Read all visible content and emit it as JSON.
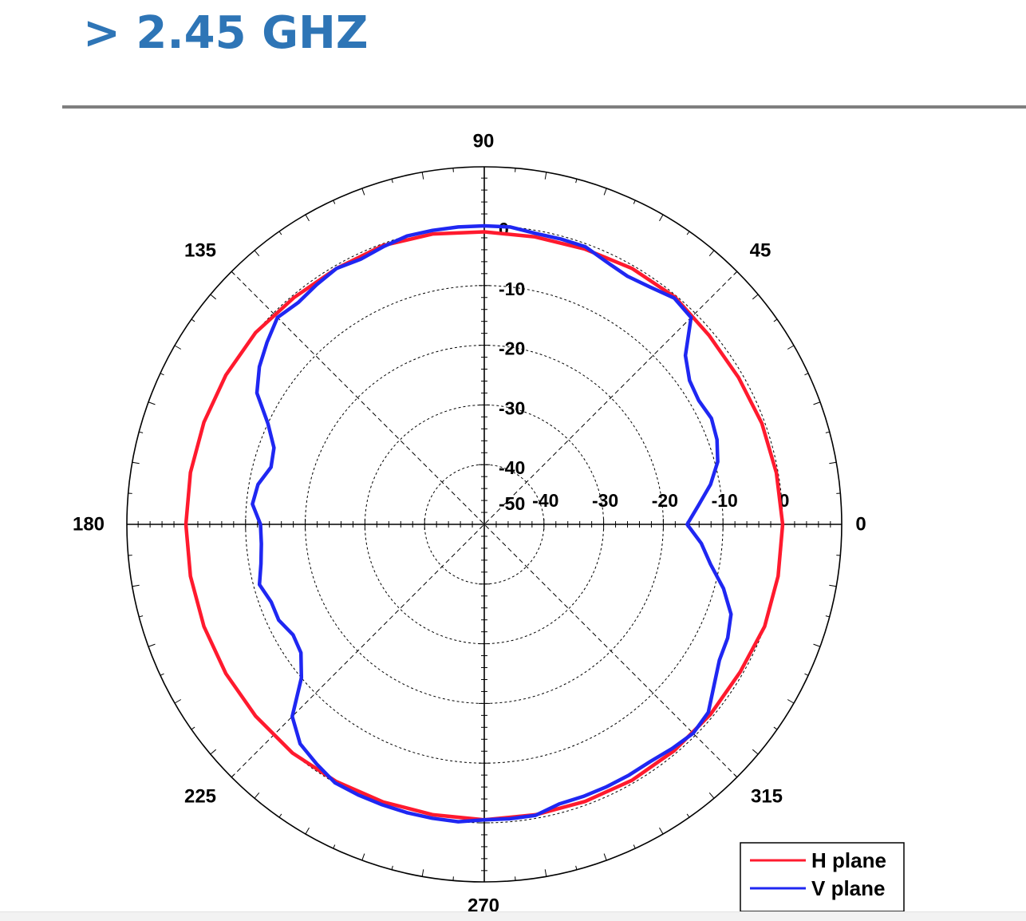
{
  "page": {
    "title": "> 2.45 GHZ"
  },
  "chart_data": {
    "type": "polar-line",
    "title": "",
    "angle_unit": "degrees",
    "radial_unit": "dB",
    "radial_range": [
      -50,
      0
    ],
    "radial_ticks": [
      -50,
      -40,
      -30,
      -20,
      -10,
      0
    ],
    "radial_tick_labels_vertical": [
      "0",
      "-10",
      "-20",
      "-30",
      "-40",
      "-50"
    ],
    "radial_tick_labels_horizontal": [
      "-40",
      "-30",
      "-20",
      "-10",
      "0"
    ],
    "angle_labels": [
      {
        "angle": 0,
        "label": "0"
      },
      {
        "angle": 45,
        "label": "45"
      },
      {
        "angle": 90,
        "label": "90"
      },
      {
        "angle": 135,
        "label": "135"
      },
      {
        "angle": 180,
        "label": "180"
      },
      {
        "angle": 225,
        "label": "225"
      },
      {
        "angle": 270,
        "label": "270"
      },
      {
        "angle": 315,
        "label": "315"
      }
    ],
    "grid": true,
    "legend_position": "bottom-right",
    "series": [
      {
        "name": "H plane",
        "color": "#ff1a2e",
        "points": [
          [
            0,
            0.0
          ],
          [
            10,
            -0.3
          ],
          [
            20,
            -0.5
          ],
          [
            30,
            -0.8
          ],
          [
            40,
            -0.8
          ],
          [
            50,
            -0.3
          ],
          [
            60,
            -0.5
          ],
          [
            70,
            -0.9
          ],
          [
            80,
            -1.1
          ],
          [
            90,
            -1.0
          ],
          [
            100,
            -0.6
          ],
          [
            110,
            -0.3
          ],
          [
            120,
            -0.5
          ],
          [
            130,
            -0.4
          ],
          [
            140,
            0.0
          ],
          [
            150,
            0.0
          ],
          [
            160,
            0.0
          ],
          [
            170,
            0.0
          ],
          [
            180,
            0.0
          ],
          [
            190,
            0.0
          ],
          [
            200,
            0.0
          ],
          [
            210,
            0.0
          ],
          [
            220,
            0.0
          ],
          [
            230,
            0.0
          ],
          [
            240,
            -0.3
          ],
          [
            250,
            -0.5
          ],
          [
            260,
            -0.6
          ],
          [
            270,
            -0.5
          ],
          [
            280,
            -0.6
          ],
          [
            290,
            -0.6
          ],
          [
            300,
            -0.5
          ],
          [
            310,
            -0.5
          ],
          [
            320,
            -0.5
          ],
          [
            330,
            -0.5
          ],
          [
            340,
            0.0
          ],
          [
            350,
            0.0
          ],
          [
            360,
            0.0
          ]
        ]
      },
      {
        "name": "V plane",
        "color": "#1f27f2",
        "points": [
          [
            0,
            -16.0
          ],
          [
            5,
            -14.0
          ],
          [
            10,
            -11.5
          ],
          [
            15,
            -9.5
          ],
          [
            20,
            -8.5
          ],
          [
            25,
            -8.0
          ],
          [
            30,
            -8.5
          ],
          [
            35,
            -8.0
          ],
          [
            40,
            -6.0
          ],
          [
            45,
            -1.0
          ],
          [
            50,
            -0.5
          ],
          [
            55,
            -1.5
          ],
          [
            60,
            -2.0
          ],
          [
            65,
            -1.5
          ],
          [
            70,
            -0.5
          ],
          [
            75,
            -0.5
          ],
          [
            80,
            -0.5
          ],
          [
            85,
            0.0
          ],
          [
            90,
            0.0
          ],
          [
            95,
            0.0
          ],
          [
            100,
            0.0
          ],
          [
            105,
            0.0
          ],
          [
            110,
            -0.5
          ],
          [
            115,
            -1.0
          ],
          [
            120,
            -0.5
          ],
          [
            125,
            -1.0
          ],
          [
            130,
            -1.5
          ],
          [
            135,
            -1.0
          ],
          [
            140,
            -2.5
          ],
          [
            145,
            -4.0
          ],
          [
            150,
            -6.0
          ],
          [
            155,
            -10.0
          ],
          [
            160,
            -12.5
          ],
          [
            165,
            -13.0
          ],
          [
            170,
            -11.5
          ],
          [
            175,
            -11.0
          ],
          [
            180,
            -12.5
          ],
          [
            185,
            -12.5
          ],
          [
            190,
            -12.0
          ],
          [
            195,
            -11.0
          ],
          [
            200,
            -12.0
          ],
          [
            205,
            -12.0
          ],
          [
            210,
            -13.0
          ],
          [
            215,
            -12.5
          ],
          [
            220,
            -10.0
          ],
          [
            225,
            -4.5
          ],
          [
            230,
            -2.0
          ],
          [
            235,
            -1.0
          ],
          [
            240,
            0.0
          ],
          [
            245,
            0.0
          ],
          [
            250,
            0.0
          ],
          [
            255,
            0.0
          ],
          [
            260,
            0.0
          ],
          [
            265,
            0.0
          ],
          [
            270,
            -0.5
          ],
          [
            275,
            -0.5
          ],
          [
            280,
            -0.5
          ],
          [
            285,
            -1.5
          ],
          [
            290,
            -1.5
          ],
          [
            295,
            -1.5
          ],
          [
            300,
            -1.5
          ],
          [
            305,
            -1.5
          ],
          [
            310,
            -1.0
          ],
          [
            315,
            -0.5
          ],
          [
            320,
            -1.0
          ],
          [
            325,
            -3.0
          ],
          [
            330,
            -4.5
          ],
          [
            335,
            -5.0
          ],
          [
            340,
            -6.0
          ],
          [
            345,
            -8.5
          ],
          [
            350,
            -11.5
          ],
          [
            355,
            -13.5
          ],
          [
            360,
            -16.0
          ]
        ]
      }
    ]
  }
}
